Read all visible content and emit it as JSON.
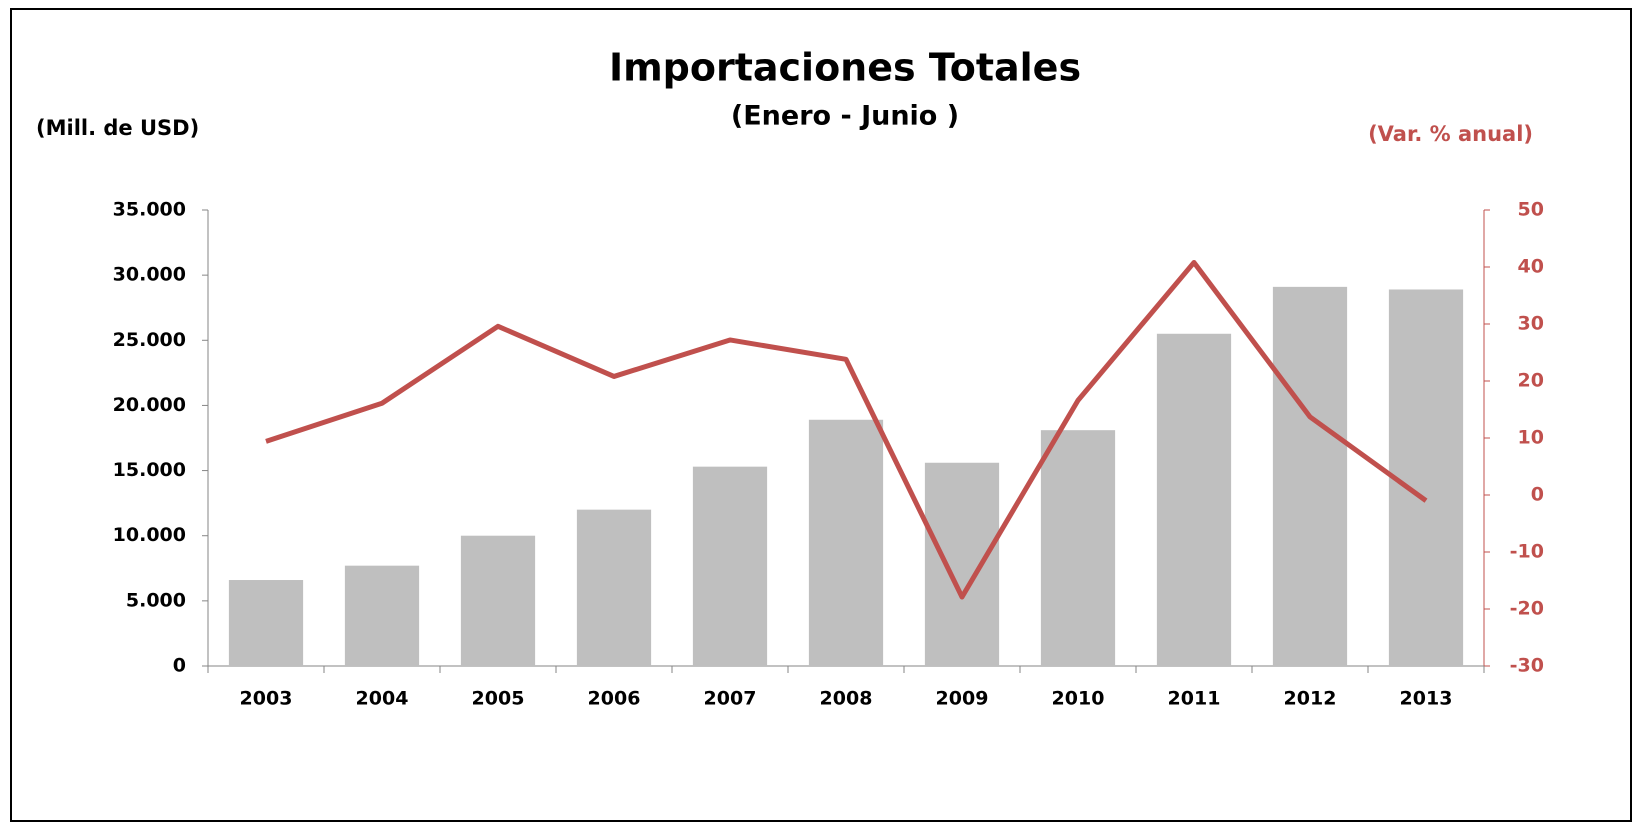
{
  "chart_data": {
    "type": "bar",
    "title": "Importaciones Totales",
    "subtitle": "(Enero - Junio )",
    "y_label": "(Mill. de USD)",
    "y2_label": "(Var. % anual)",
    "categories": [
      "2003",
      "2004",
      "2005",
      "2006",
      "2007",
      "2008",
      "2009",
      "2010",
      "2011",
      "2012",
      "2013"
    ],
    "series": [
      {
        "type": "bar",
        "color": "#bfbfbf",
        "values": [
          6600,
          7700,
          10000,
          12000,
          15300,
          18900,
          15600,
          18100,
          25500,
          29100,
          28900
        ]
      },
      {
        "type": "line",
        "axis": "y2",
        "color": "#c0504d",
        "values": [
          9.4,
          16.1,
          29.6,
          20.8,
          27.2,
          23.8,
          -17.9,
          16.6,
          40.8,
          13.7,
          -1.0
        ]
      }
    ],
    "ylim": [
      0,
      35000
    ],
    "yticks": [
      0,
      {
        "value": 5000,
        "label": "5.000"
      },
      {
        "value": 10000,
        "label": "10.000"
      },
      {
        "value": 15000,
        "label": "15.000"
      },
      {
        "value": 20000,
        "label": "20.000"
      },
      {
        "value": 25000,
        "label": "25.000"
      },
      {
        "value": 30000,
        "label": "30.000"
      },
      {
        "value": 35000,
        "label": "35.000"
      }
    ],
    "y2lim": [
      -30,
      50
    ],
    "y2ticks": [
      -30,
      -20,
      -10,
      0,
      10,
      20,
      30,
      40,
      50
    ],
    "y2_color": "#c0504d"
  }
}
